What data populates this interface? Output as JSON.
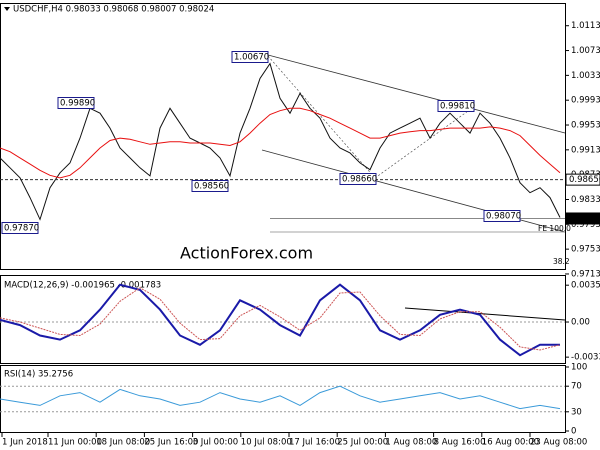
{
  "header": "USDCHF,H4  0.98033 0.98068 0.98007 0.98024",
  "watermark": "ActionForex.com",
  "x_labels": [
    "1 Jun 2018",
    "11 Jun 00:00",
    "18 Jun 08:00",
    "25 Jun 16:00",
    "3 Jul 00:00",
    "10 Jul 08:00",
    "17 Jul 16:00",
    "25 Jul 00:00",
    "1 Aug 08:00",
    "8 Aug 16:00",
    "16 Aug 00:00",
    "23 Aug 08:00"
  ],
  "chart_data": [
    {
      "type": "line",
      "ylim": [
        0.9721,
        1.0148
      ],
      "yticks": [
        {
          "value": 1.0113,
          "label": "1.01130"
        },
        {
          "value": 1.0073,
          "label": "1.00730"
        },
        {
          "value": 1.0033,
          "label": "1.00330"
        },
        {
          "value": 0.9993,
          "label": "0.99930"
        },
        {
          "value": 0.9953,
          "label": "0.99530"
        },
        {
          "value": 0.9913,
          "label": "0.99130"
        },
        {
          "value": 0.9873,
          "label": "0.98730"
        },
        {
          "value": 0.9833,
          "label": "0.98330"
        },
        {
          "value": 0.9793,
          "label": "0.97930"
        },
        {
          "value": 0.9753,
          "label": "0.97530"
        },
        {
          "value": 0.9713,
          "label": "0.97130"
        }
      ],
      "series": [
        {
          "name": "USDCHF",
          "color": "#111111",
          "values": [
            0.99,
            0.9884,
            0.9868,
            0.9836,
            0.9801,
            0.9852,
            0.9876,
            0.9892,
            0.9932,
            0.998,
            0.9972,
            0.9948,
            0.9916,
            0.99,
            0.9884,
            0.9871,
            0.9948,
            0.998,
            0.9956,
            0.9932,
            0.9924,
            0.9916,
            0.99,
            0.9871,
            0.994,
            0.998,
            1.0028,
            1.0052,
            0.9996,
            0.9972,
            1.0004,
            0.998,
            0.9964,
            0.9932,
            0.9916,
            0.9908,
            0.9892,
            0.9881,
            0.9916,
            0.994,
            0.9948,
            0.9956,
            0.9964,
            0.9932,
            0.9956,
            0.9972,
            0.9956,
            0.994,
            0.9972,
            0.9956,
            0.9932,
            0.99,
            0.986,
            0.9844,
            0.9852,
            0.9836,
            0.9804
          ]
        },
        {
          "name": "MA",
          "color": "#e81010",
          "values": [
            0.9916,
            0.991,
            0.99,
            0.989,
            0.988,
            0.9872,
            0.9868,
            0.9872,
            0.9884,
            0.99,
            0.9916,
            0.9928,
            0.9932,
            0.993,
            0.9926,
            0.9922,
            0.9924,
            0.9926,
            0.9926,
            0.9924,
            0.9924,
            0.9924,
            0.9922,
            0.992,
            0.9926,
            0.994,
            0.9956,
            0.997,
            0.9976,
            0.998,
            0.998,
            0.9976,
            0.997,
            0.9964,
            0.9956,
            0.9948,
            0.994,
            0.9932,
            0.9932,
            0.9936,
            0.994,
            0.9942,
            0.9944,
            0.9944,
            0.9946,
            0.9948,
            0.9948,
            0.9948,
            0.9948,
            0.995,
            0.9948,
            0.9944,
            0.9936,
            0.992,
            0.9904,
            0.989,
            0.9876
          ]
        }
      ],
      "annotations": [
        "1.00670",
        "0.99890",
        "0.98560",
        "0.98660",
        "0.99810",
        "0.98070",
        "0.97870"
      ],
      "levels": [
        {
          "value": 0.9865,
          "label": "0.98650"
        },
        {
          "value": 0.98024,
          "label": "0.98024"
        }
      ],
      "fib_labels": [
        "FE 100.0",
        "38.2"
      ]
    },
    {
      "type": "line",
      "title": "MACD(12,26,9) -0.001965 -0.001783",
      "ylim": [
        -0.00386,
        0.00425
      ],
      "yticks": [
        0.003556,
        {
          "value": 0,
          "label": "0.00"
        },
        -0.003391
      ],
      "series": [
        {
          "name": "MACD",
          "color": "#1a1aa8",
          "values": [
            0.0002,
            -0.0003,
            -0.0013,
            -0.0017,
            -0.0008,
            0.0012,
            0.0036,
            0.0031,
            0.0012,
            -0.0013,
            -0.0022,
            -0.0008,
            0.0021,
            0.0012,
            -0.0003,
            -0.0013,
            0.0021,
            0.0036,
            0.0021,
            -0.0008,
            -0.0017,
            -0.0008,
            0.0007,
            0.0012,
            0.0007,
            -0.0017,
            -0.0032,
            -0.0022,
            -0.0022
          ]
        },
        {
          "name": "Signal",
          "color": "#cc5555",
          "values": [
            0.0004,
            0.0,
            -0.0006,
            -0.0012,
            -0.0013,
            -0.0002,
            0.002,
            0.0033,
            0.0022,
            -0.0001,
            -0.0017,
            -0.0016,
            0.0006,
            0.0016,
            0.0005,
            -0.0008,
            0.0004,
            0.0028,
            0.0029,
            0.0006,
            -0.0012,
            -0.0013,
            0.0003,
            0.001,
            0.001,
            -0.0005,
            -0.0024,
            -0.0027,
            -0.0022
          ]
        }
      ]
    },
    {
      "type": "line",
      "title": "RSI(14) 35.2756",
      "ylim": [
        0,
        100
      ],
      "yticks": [
        100,
        70,
        30,
        0
      ],
      "series": [
        {
          "name": "RSI",
          "color": "#3a9ad9",
          "values": [
            50,
            45,
            40,
            55,
            60,
            45,
            65,
            55,
            50,
            40,
            45,
            60,
            50,
            45,
            55,
            40,
            60,
            70,
            55,
            45,
            50,
            55,
            60,
            50,
            55,
            45,
            35,
            40,
            35
          ]
        }
      ]
    }
  ]
}
